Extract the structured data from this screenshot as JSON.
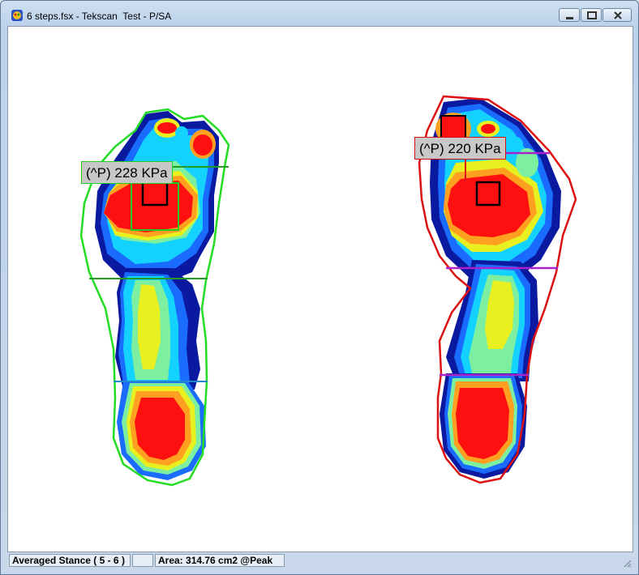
{
  "window": {
    "title": "6 steps.fsx - Tekscan  Test - P/SA",
    "icons": {
      "app": "tekscan-app-icon",
      "minimize": "minimize-icon",
      "maximize": "maximize-icon",
      "close": "close-icon"
    }
  },
  "feet": {
    "left": {
      "peak_label": "(^P) 228 KPa",
      "outline_color": "#22dd22"
    },
    "right": {
      "peak_label": "(^P) 220 KPa",
      "outline_color": "#dd1111"
    }
  },
  "status": {
    "mode": "Averaged Stance ( 5 - 6 )",
    "blank": "",
    "area": "Area: 314.76 cm2 @Peak"
  },
  "colors": {
    "pressure_scale": [
      "#0a1aa0",
      "#1a6cff",
      "#14d2ff",
      "#7cf0a0",
      "#e8f020",
      "#ffa020",
      "#ff1010"
    ]
  }
}
